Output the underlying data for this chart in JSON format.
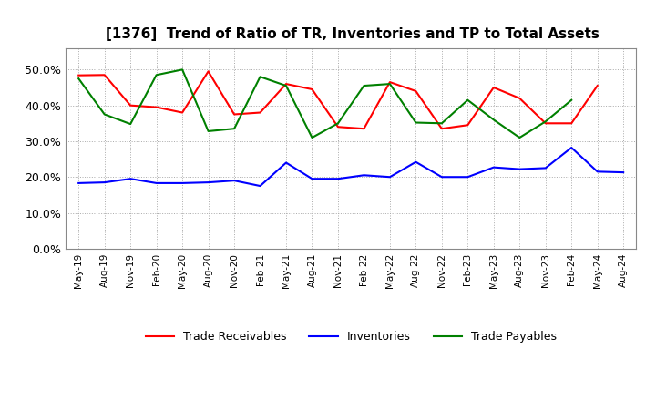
{
  "title": "[1376]  Trend of Ratio of TR, Inventories and TP to Total Assets",
  "x_labels": [
    "May-19",
    "Aug-19",
    "Nov-19",
    "Feb-20",
    "May-20",
    "Aug-20",
    "Nov-20",
    "Feb-21",
    "May-21",
    "Aug-21",
    "Nov-21",
    "Feb-22",
    "May-22",
    "Aug-22",
    "Nov-22",
    "Feb-23",
    "May-23",
    "Aug-23",
    "Nov-23",
    "Feb-24",
    "May-24",
    "Aug-24"
  ],
  "trade_receivables": [
    0.484,
    0.485,
    0.4,
    0.395,
    0.38,
    0.495,
    0.375,
    0.38,
    0.46,
    0.445,
    0.34,
    0.335,
    0.465,
    0.44,
    0.335,
    0.345,
    0.45,
    0.42,
    0.35,
    0.35,
    0.455,
    null
  ],
  "inventories": [
    0.183,
    0.185,
    0.195,
    0.183,
    0.183,
    0.185,
    0.19,
    0.175,
    0.24,
    0.195,
    0.195,
    0.205,
    0.2,
    0.242,
    0.2,
    0.2,
    0.227,
    0.222,
    0.225,
    0.282,
    0.215,
    0.213
  ],
  "trade_payables": [
    0.475,
    0.375,
    0.348,
    0.485,
    0.5,
    0.328,
    0.335,
    0.48,
    0.455,
    0.31,
    0.35,
    0.455,
    0.46,
    0.352,
    0.35,
    0.415,
    0.36,
    0.31,
    0.355,
    0.415,
    null,
    null
  ],
  "tr_color": "#ff0000",
  "inv_color": "#0000ff",
  "tp_color": "#008000",
  "ylim": [
    0.0,
    0.56
  ],
  "yticks": [
    0.0,
    0.1,
    0.2,
    0.3,
    0.4,
    0.5
  ],
  "background_color": "#ffffff",
  "grid_color": "#aaaaaa"
}
